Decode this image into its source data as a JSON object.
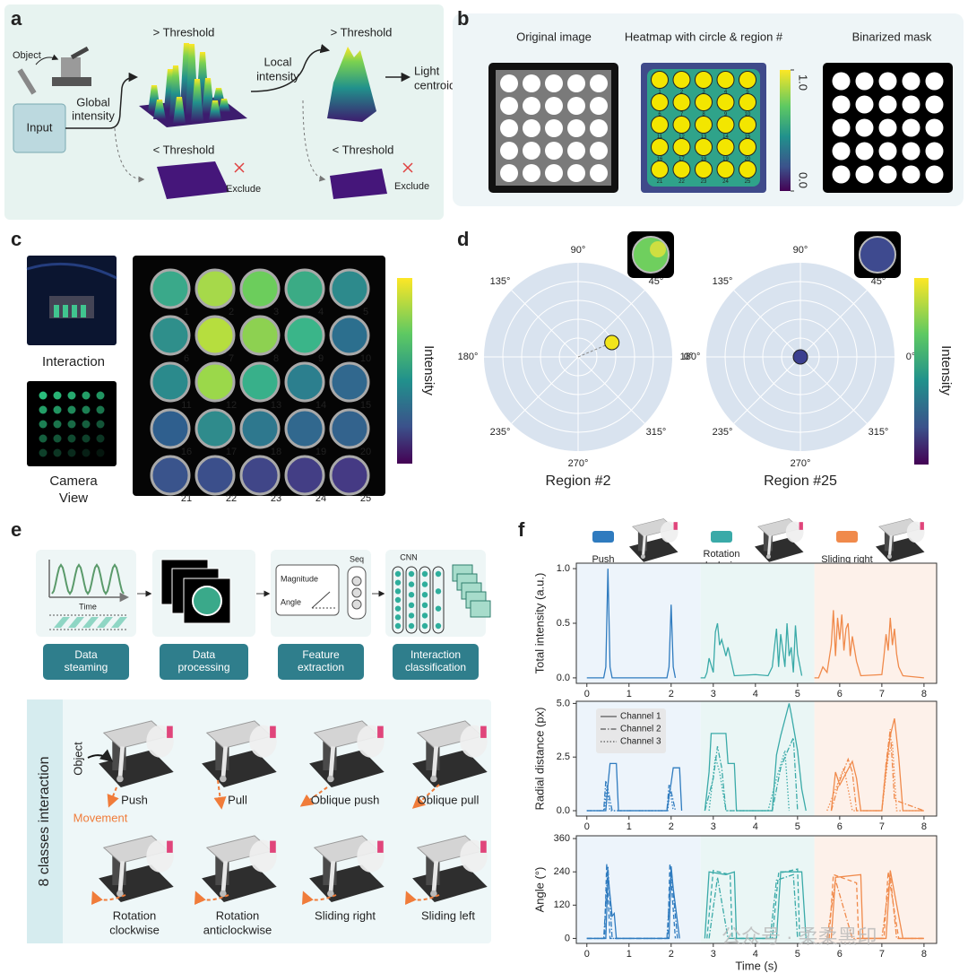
{
  "panels": {
    "a": {
      "label": "a",
      "object": "Object",
      "input": "Input",
      "global": [
        "Global",
        "intensity"
      ],
      "above_global": "> Threshold",
      "local": [
        "Local",
        "intensity"
      ],
      "above_local": "> Threshold",
      "centroid": [
        "Light",
        "centroid"
      ],
      "below_global": "< Threshold",
      "exclude_global": "Exclude",
      "below_local": "< Threshold",
      "exclude_local": "Exclude"
    },
    "b": {
      "label": "b",
      "titles": [
        "Original image",
        "Heatmap with circle & region #",
        "Binarized mask"
      ],
      "colorbar_ticks": [
        {
          "value": 1,
          "label": "1.0"
        },
        {
          "value": 0,
          "label": "0.0"
        }
      ],
      "region_labels": [
        1,
        2,
        3,
        4,
        5,
        6,
        7,
        8,
        9,
        10,
        11,
        12,
        13,
        14,
        15,
        16,
        17,
        18,
        19,
        20,
        21,
        22,
        23,
        24,
        25
      ]
    },
    "c": {
      "label": "c",
      "interaction": "Interaction",
      "camera": [
        "Camera",
        "View"
      ],
      "colorbar_label": "Intensity",
      "region_labels": [
        1,
        2,
        3,
        4,
        5,
        6,
        7,
        8,
        9,
        10,
        11,
        12,
        13,
        14,
        15,
        16,
        17,
        18,
        19,
        20,
        21,
        22,
        23,
        24,
        25
      ],
      "region_colors": [
        "#3aa98a",
        "#a6d94a",
        "#6ccd5c",
        "#3bab85",
        "#2d8a8c",
        "#2f8f8b",
        "#b6de3e",
        "#8dd151",
        "#3ab589",
        "#2c6f8e",
        "#2b8a8c",
        "#9bd84a",
        "#38b08a",
        "#2c7f8e",
        "#31688e",
        "#2f5f8e",
        "#2f8b8c",
        "#2e788e",
        "#31688e",
        "#33638d",
        "#3a548c",
        "#3b4f8b",
        "#404688",
        "#433e85",
        "#453a84"
      ]
    },
    "d": {
      "label": "d",
      "colorbar_label": "Intensity",
      "plots": [
        {
          "title": "Region #2",
          "angle_labels": [
            "90°",
            "45°",
            "0°",
            "315°",
            "270°",
            "235°",
            "180°",
            "135°"
          ],
          "point": {
            "angle": 23,
            "radius": 0.39
          },
          "color": "#f2e51b"
        },
        {
          "title": "Region #25",
          "angle_labels": [
            "90°",
            "45°",
            "0°",
            "315°",
            "270°",
            "235°",
            "180°",
            "135°"
          ],
          "point": {
            "angle": 0,
            "radius": 0
          },
          "color": "#3b3f8f"
        }
      ]
    },
    "e": {
      "label": "e",
      "time": "Time",
      "magnitude": "Magnitude",
      "angle": "Angle",
      "seq": "Seq",
      "cnn": "CNN",
      "steps": [
        [
          "Data",
          "steaming"
        ],
        [
          "Data",
          "processing"
        ],
        [
          "Feature",
          "extraction"
        ],
        [
          "Interaction",
          "classification"
        ]
      ],
      "classes_title": "8 classes interaction",
      "object": "Object",
      "movement": "Movement",
      "classes": [
        [
          "Push"
        ],
        [
          "Pull"
        ],
        [
          "Oblique push"
        ],
        [
          "Oblique pull"
        ],
        [
          "Rotation",
          "clockwise"
        ],
        [
          "Rotation",
          "anticlockwise"
        ],
        [
          "Sliding right"
        ],
        [
          "Sliding left"
        ]
      ]
    },
    "f": {
      "label": "f",
      "watermark": "公众号 · 柔柔黑印",
      "segments": [
        {
          "label": [
            "Push"
          ],
          "color": "#2f7bbf",
          "shade": "#edf4fb",
          "range": [
            -0.25,
            2.7
          ]
        },
        {
          "label": [
            "Rotation",
            "clockwise"
          ],
          "color": "#3aaaa8",
          "shade": "#eaf6f5",
          "range": [
            2.7,
            5.4
          ]
        },
        {
          "label": [
            "Sliding right"
          ],
          "color": "#f08a4b",
          "shade": "#fdf1ea",
          "range": [
            5.4,
            8.3
          ]
        }
      ]
    }
  },
  "chart_data": [
    {
      "type": "line",
      "ylabel": "Total intensity (a.u.)",
      "xlim": [
        -0.25,
        8.3
      ],
      "xticks": [
        0,
        1,
        2,
        3,
        4,
        5,
        6,
        7,
        8
      ],
      "ylim": [
        -0.05,
        1.05
      ],
      "yticks": [
        {
          "value": 0,
          "label": "0.0"
        },
        0.5,
        {
          "value": 1,
          "label": "1.0"
        }
      ],
      "series": [
        {
          "style": "solid",
          "x": [
            0,
            0.4,
            0.45,
            0.5,
            0.55,
            0.6,
            1.9,
            1.95,
            2.0,
            2.05,
            2.1,
            2.7,
            2.8,
            2.85,
            2.9,
            3.0,
            3.05,
            3.1,
            3.15,
            3.2,
            3.3,
            3.35,
            3.5,
            4.0,
            4.3,
            4.4,
            4.5,
            4.55,
            4.6,
            4.7,
            4.75,
            4.8,
            4.85,
            4.9,
            4.95,
            5.0,
            5.1,
            5.4,
            5.5,
            5.6,
            5.7,
            5.8,
            5.85,
            5.9,
            5.95,
            6.0,
            6.05,
            6.1,
            6.15,
            6.2,
            6.25,
            6.3,
            6.4,
            6.5,
            7.0,
            7.05,
            7.1,
            7.15,
            7.2,
            7.25,
            7.3,
            7.35,
            7.4,
            7.5,
            8.0
          ],
          "values": [
            0,
            0,
            0.1,
            1.0,
            0.1,
            0,
            0,
            0.1,
            0.67,
            0.1,
            0,
            0,
            0,
            0.05,
            0.18,
            0.05,
            0.42,
            0.5,
            0.3,
            0.35,
            0.2,
            0.28,
            0.02,
            0.03,
            0.02,
            0.1,
            0.45,
            0.1,
            0.4,
            0.1,
            0.5,
            0.2,
            0.28,
            0.05,
            0.48,
            0.22,
            0.02,
            0,
            0,
            0.1,
            0.05,
            0.3,
            0.62,
            0.2,
            0.55,
            0.35,
            0.58,
            0.25,
            0.45,
            0.5,
            0.2,
            0.38,
            0.15,
            0.02,
            0.03,
            0.2,
            0.4,
            0.25,
            0.55,
            0.3,
            0.45,
            0.22,
            0.1,
            0.02,
            0
          ]
        }
      ]
    },
    {
      "type": "line",
      "ylabel": "Radial distance (px)",
      "xlim": [
        -0.25,
        8.3
      ],
      "xticks": [
        0,
        1,
        2,
        3,
        4,
        5,
        6,
        7,
        8
      ],
      "ylim": [
        -0.25,
        5.1
      ],
      "yticks": [
        {
          "value": 0,
          "label": "0.0"
        },
        2.5,
        {
          "value": 5,
          "label": "5.0"
        }
      ],
      "legend": "upper left",
      "series": [
        {
          "name": "Channel 1",
          "style": "solid",
          "x": [
            0,
            0.45,
            0.5,
            0.55,
            0.7,
            0.75,
            1.9,
            2.0,
            2.05,
            2.2,
            2.25,
            2.8,
            2.9,
            2.95,
            3.3,
            3.35,
            3.5,
            3.55,
            4.4,
            4.5,
            4.6,
            4.8,
            4.85,
            5.0,
            5.1,
            5.2,
            5.8,
            5.9,
            6.0,
            6.3,
            6.4,
            6.5,
            7.0,
            7.1,
            7.2,
            7.3,
            7.4,
            7.5,
            8.0
          ],
          "values": [
            0,
            0,
            1.2,
            2.2,
            2.2,
            0,
            0,
            1.3,
            2.0,
            2.0,
            0,
            0,
            1.8,
            3.6,
            3.6,
            2.2,
            2.2,
            0,
            0,
            2.6,
            3.5,
            5.0,
            4.5,
            2.8,
            1.0,
            0,
            0,
            1.8,
            1.2,
            2.3,
            1.5,
            0,
            0,
            2.0,
            3.5,
            4.3,
            2.5,
            0,
            0
          ]
        },
        {
          "name": "Channel 2",
          "style": "dashdot",
          "x": [
            0,
            0.4,
            0.45,
            0.5,
            0.6,
            1.9,
            1.95,
            2.0,
            2.1,
            2.8,
            3.0,
            3.1,
            3.2,
            3.3,
            4.4,
            4.6,
            4.7,
            4.9,
            5.0,
            5.8,
            6.0,
            6.2,
            6.3,
            6.4,
            7.0,
            7.1,
            7.2,
            7.3,
            8.0
          ],
          "values": [
            0,
            0,
            1.4,
            1.0,
            0,
            0,
            1.2,
            0.9,
            0,
            0,
            1.5,
            3.0,
            2.0,
            0,
            0,
            2.0,
            2.5,
            3.4,
            0,
            0,
            1.4,
            2.4,
            1.8,
            0,
            0,
            2.2,
            3.8,
            0.5,
            0
          ]
        },
        {
          "name": "Channel 3",
          "style": "dotted",
          "x": [
            0,
            0.42,
            0.47,
            0.55,
            1.92,
            1.97,
            2.05,
            2.9,
            3.05,
            3.15,
            3.3,
            4.3,
            4.5,
            4.7,
            4.8,
            5.7,
            5.9,
            6.1,
            6.3,
            7.0,
            7.15,
            7.25,
            7.35,
            8.0
          ],
          "values": [
            0,
            0,
            1.1,
            0,
            0,
            1.0,
            0,
            0,
            2.5,
            1.8,
            0,
            0,
            1.5,
            2.8,
            0,
            0,
            1.0,
            2.0,
            0,
            0,
            2.5,
            3.2,
            0,
            0
          ]
        }
      ]
    },
    {
      "type": "line",
      "ylabel": "Angle (°)",
      "xlabel": "Time (s)",
      "xlim": [
        -0.25,
        8.3
      ],
      "xticks": [
        0,
        1,
        2,
        3,
        4,
        5,
        6,
        7,
        8
      ],
      "ylim": [
        -18,
        370
      ],
      "yticks": [
        0,
        120,
        240,
        360
      ],
      "series": [
        {
          "style": "solid",
          "x": [
            0,
            0.45,
            0.5,
            0.6,
            0.65,
            0.7,
            1.95,
            2.0,
            2.05,
            2.2,
            2.8,
            2.9,
            3.3,
            3.5,
            3.55,
            4.5,
            4.6,
            5.1,
            5.2,
            5.8,
            5.9,
            6.5,
            6.55,
            7.1,
            7.2,
            7.5,
            8.0
          ],
          "values": [
            0,
            0,
            230,
            80,
            90,
            0,
            0,
            260,
            180,
            0,
            0,
            240,
            230,
            240,
            0,
            0,
            240,
            240,
            0,
            0,
            220,
            230,
            0,
            0,
            245,
            0,
            0
          ]
        },
        {
          "style": "dashed",
          "x": [
            0,
            0.42,
            0.47,
            0.55,
            1.92,
            1.97,
            2.1,
            2.85,
            3.0,
            3.4,
            3.45,
            4.4,
            4.55,
            5.0,
            5.05,
            5.75,
            5.85,
            6.4,
            6.45,
            7.05,
            7.15,
            7.4,
            8.0
          ],
          "values": [
            0,
            0,
            270,
            0,
            0,
            270,
            0,
            0,
            245,
            230,
            0,
            0,
            235,
            250,
            0,
            0,
            230,
            200,
            0,
            0,
            240,
            0,
            0
          ]
        },
        {
          "style": "dashdot",
          "x": [
            0,
            0.4,
            0.5,
            0.6,
            1.9,
            2.0,
            2.15,
            2.9,
            3.1,
            3.35,
            4.35,
            4.5,
            4.9,
            5.0,
            5.7,
            5.9,
            6.3,
            7.0,
            7.2,
            7.35,
            8.0
          ],
          "values": [
            0,
            0,
            260,
            0,
            0,
            250,
            0,
            0,
            220,
            0,
            0,
            210,
            230,
            0,
            0,
            210,
            0,
            0,
            230,
            0,
            0
          ]
        }
      ]
    }
  ]
}
